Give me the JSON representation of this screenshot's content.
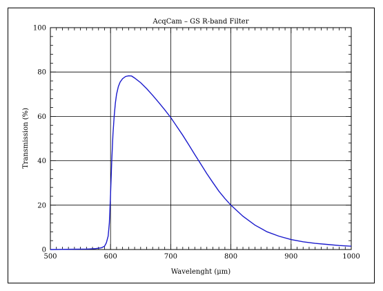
{
  "chart_data": {
    "type": "line",
    "title": "AcqCam – GS R-band Filter",
    "xlabel": "Wavelenght (μm)",
    "ylabel": "Transmission (%)",
    "xlim": [
      500,
      1000
    ],
    "ylim": [
      0,
      100
    ],
    "xticks": [
      500,
      600,
      700,
      800,
      900,
      1000
    ],
    "yticks": [
      0,
      20,
      40,
      60,
      80,
      100
    ],
    "xtick_labels": [
      "500",
      "600",
      "700",
      "800",
      "900",
      "1000"
    ],
    "ytick_labels": [
      "0",
      "20",
      "40",
      "60",
      "80",
      "100"
    ],
    "grid": true,
    "series": [
      {
        "color": "#1a1acc",
        "x": [
          500,
          560,
          575,
          585,
          590,
          593,
          596,
          598,
          600,
          602,
          604,
          606,
          608,
          610,
          613,
          616,
          620,
          625,
          630,
          635,
          640,
          650,
          660,
          670,
          680,
          690,
          700,
          710,
          720,
          730,
          740,
          750,
          760,
          770,
          780,
          790,
          800,
          820,
          840,
          860,
          880,
          900,
          920,
          940,
          960,
          980,
          1000
        ],
        "y": [
          0,
          0.2,
          0.4,
          0.8,
          1.5,
          3,
          6,
          12,
          25,
          40,
          52,
          60,
          66,
          70,
          73.5,
          75.5,
          77,
          78,
          78.3,
          78.2,
          77.3,
          75.2,
          72.5,
          69.5,
          66.3,
          63,
          59.5,
          55.5,
          51.5,
          47.2,
          42.8,
          38.5,
          34.2,
          30.2,
          26.3,
          23,
          20,
          15,
          11,
          8,
          6,
          4.5,
          3.5,
          2.8,
          2.3,
          1.8,
          1.5
        ]
      }
    ]
  }
}
